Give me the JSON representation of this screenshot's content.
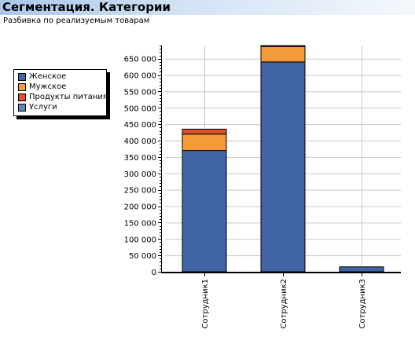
{
  "header": {
    "title": "Сегментация. Категории",
    "subtitle": "Разбивка по реализуемым товарам"
  },
  "colors": {
    "female": "#4164a4",
    "male": "#f59a38",
    "food": "#e0502a",
    "services": "#5b87b6"
  },
  "chart_data": {
    "type": "bar",
    "stacked": true,
    "title": "Сегментация. Категории",
    "subtitle": "Разбивка по реализуемым товарам",
    "xlabel": "",
    "ylabel": "",
    "categories": [
      "Сотрудник1",
      "Сотрудник2",
      "Сотрудник3"
    ],
    "series": [
      {
        "name": "Женское",
        "values": [
          370000,
          640000,
          15000
        ]
      },
      {
        "name": "Мужское",
        "values": [
          50000,
          47000,
          0
        ]
      },
      {
        "name": "Продукты питания",
        "values": [
          15000,
          3000,
          0
        ]
      },
      {
        "name": "Услуги",
        "values": [
          0,
          0,
          0
        ]
      }
    ],
    "ylim": [
      0,
      690000
    ],
    "yticks": [
      0,
      50000,
      100000,
      150000,
      200000,
      250000,
      300000,
      350000,
      400000,
      450000,
      500000,
      550000,
      600000,
      650000
    ],
    "ytick_labels": [
      "0",
      "50 000",
      "100 000",
      "150 000",
      "200 000",
      "250 000",
      "300 000",
      "350 000",
      "400 000",
      "450 000",
      "500 000",
      "550 000",
      "600 000",
      "650 000"
    ],
    "grid": true,
    "legend_position": "left"
  }
}
